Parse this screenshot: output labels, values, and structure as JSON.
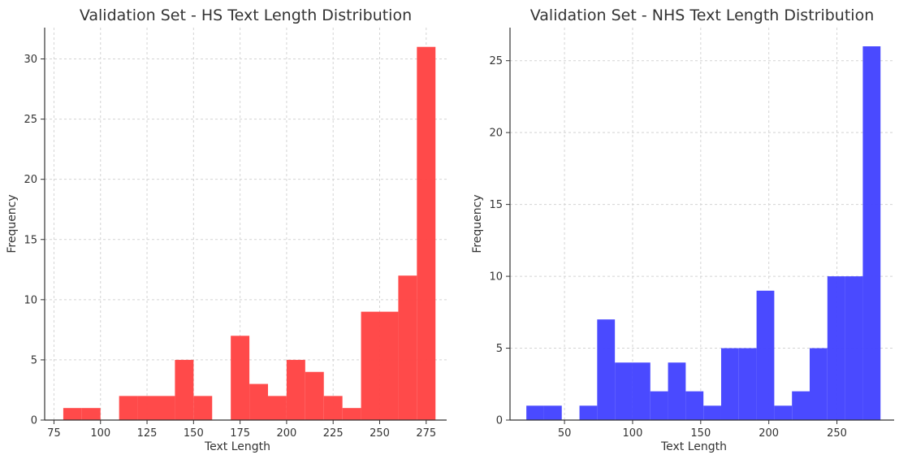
{
  "chart_data": [
    {
      "type": "bar",
      "title": "Validation Set - HS Text Length Distribution",
      "xlabel": "Text Length",
      "ylabel": "Frequency",
      "color": "#ff4444",
      "xlim": [
        70,
        286
      ],
      "ylim": [
        0,
        32.6
      ],
      "xticks": [
        75,
        100,
        125,
        150,
        175,
        200,
        225,
        250,
        275
      ],
      "yticks": [
        0,
        5,
        10,
        15,
        20,
        25,
        30
      ],
      "grid": true,
      "bins": [
        {
          "x0": 80,
          "x1": 90,
          "value": 1
        },
        {
          "x0": 90,
          "x1": 100,
          "value": 1
        },
        {
          "x0": 100,
          "x1": 110,
          "value": 0
        },
        {
          "x0": 110,
          "x1": 120,
          "value": 2
        },
        {
          "x0": 120,
          "x1": 130,
          "value": 2
        },
        {
          "x0": 130,
          "x1": 140,
          "value": 2
        },
        {
          "x0": 140,
          "x1": 150,
          "value": 5
        },
        {
          "x0": 150,
          "x1": 160,
          "value": 2
        },
        {
          "x0": 160,
          "x1": 170,
          "value": 0
        },
        {
          "x0": 170,
          "x1": 180,
          "value": 7
        },
        {
          "x0": 180,
          "x1": 190,
          "value": 3
        },
        {
          "x0": 190,
          "x1": 200,
          "value": 2
        },
        {
          "x0": 200,
          "x1": 210,
          "value": 5
        },
        {
          "x0": 210,
          "x1": 220,
          "value": 4
        },
        {
          "x0": 220,
          "x1": 230,
          "value": 2
        },
        {
          "x0": 230,
          "x1": 240,
          "value": 1
        },
        {
          "x0": 240,
          "x1": 250,
          "value": 9
        },
        {
          "x0": 250,
          "x1": 260,
          "value": 9
        },
        {
          "x0": 260,
          "x1": 270,
          "value": 12
        },
        {
          "x0": 270,
          "x1": 280,
          "value": 31
        }
      ]
    },
    {
      "type": "bar",
      "title": "Validation Set - NHS Text Length Distribution",
      "xlabel": "Text Length",
      "ylabel": "Frequency",
      "color": "#4444ff",
      "xlim": [
        10,
        292
      ],
      "ylim": [
        0,
        27.3
      ],
      "xticks": [
        50,
        100,
        150,
        200,
        250
      ],
      "yticks": [
        0,
        5,
        10,
        15,
        20,
        25
      ],
      "grid": true,
      "bins": [
        {
          "x0": 22,
          "x1": 35,
          "value": 1
        },
        {
          "x0": 35,
          "x1": 48,
          "value": 1
        },
        {
          "x0": 48,
          "x1": 61,
          "value": 0
        },
        {
          "x0": 61,
          "x1": 74,
          "value": 1
        },
        {
          "x0": 74,
          "x1": 87,
          "value": 7
        },
        {
          "x0": 87,
          "x1": 100,
          "value": 4
        },
        {
          "x0": 100,
          "x1": 113,
          "value": 4
        },
        {
          "x0": 113,
          "x1": 126,
          "value": 2
        },
        {
          "x0": 126,
          "x1": 139,
          "value": 4
        },
        {
          "x0": 139,
          "x1": 152,
          "value": 2
        },
        {
          "x0": 152,
          "x1": 165,
          "value": 1
        },
        {
          "x0": 165,
          "x1": 178,
          "value": 5
        },
        {
          "x0": 178,
          "x1": 191,
          "value": 5
        },
        {
          "x0": 191,
          "x1": 204,
          "value": 9
        },
        {
          "x0": 204,
          "x1": 217,
          "value": 1
        },
        {
          "x0": 217,
          "x1": 230,
          "value": 2
        },
        {
          "x0": 230,
          "x1": 243,
          "value": 5
        },
        {
          "x0": 243,
          "x1": 256,
          "value": 10
        },
        {
          "x0": 256,
          "x1": 269,
          "value": 10
        },
        {
          "x0": 269,
          "x1": 282,
          "value": 26
        }
      ]
    }
  ]
}
